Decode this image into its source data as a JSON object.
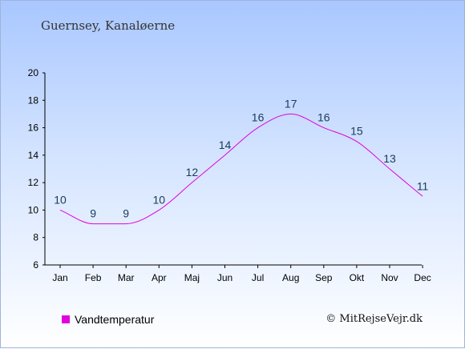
{
  "location": "Guernsey, Kanaløerne",
  "legend_label": "Vandtemperatur",
  "credit": "© MitRejseVejr.dk",
  "colors": {
    "series": "#e000e0",
    "axis": "#000000"
  },
  "chart_data": {
    "type": "line",
    "title": "Guernsey, Kanaløerne",
    "categories": [
      "Jan",
      "Feb",
      "Mar",
      "Apr",
      "Maj",
      "Jun",
      "Jul",
      "Aug",
      "Sep",
      "Okt",
      "Nov",
      "Dec"
    ],
    "series": [
      {
        "name": "Vandtemperatur",
        "values": [
          10,
          9,
          9,
          10,
          12,
          14,
          16,
          17,
          16,
          15,
          13,
          11
        ]
      }
    ],
    "ylim": [
      6,
      20
    ],
    "yticks": [
      6,
      8,
      10,
      12,
      14,
      16,
      18,
      20
    ],
    "grid": false,
    "legend": "bottom-left"
  }
}
